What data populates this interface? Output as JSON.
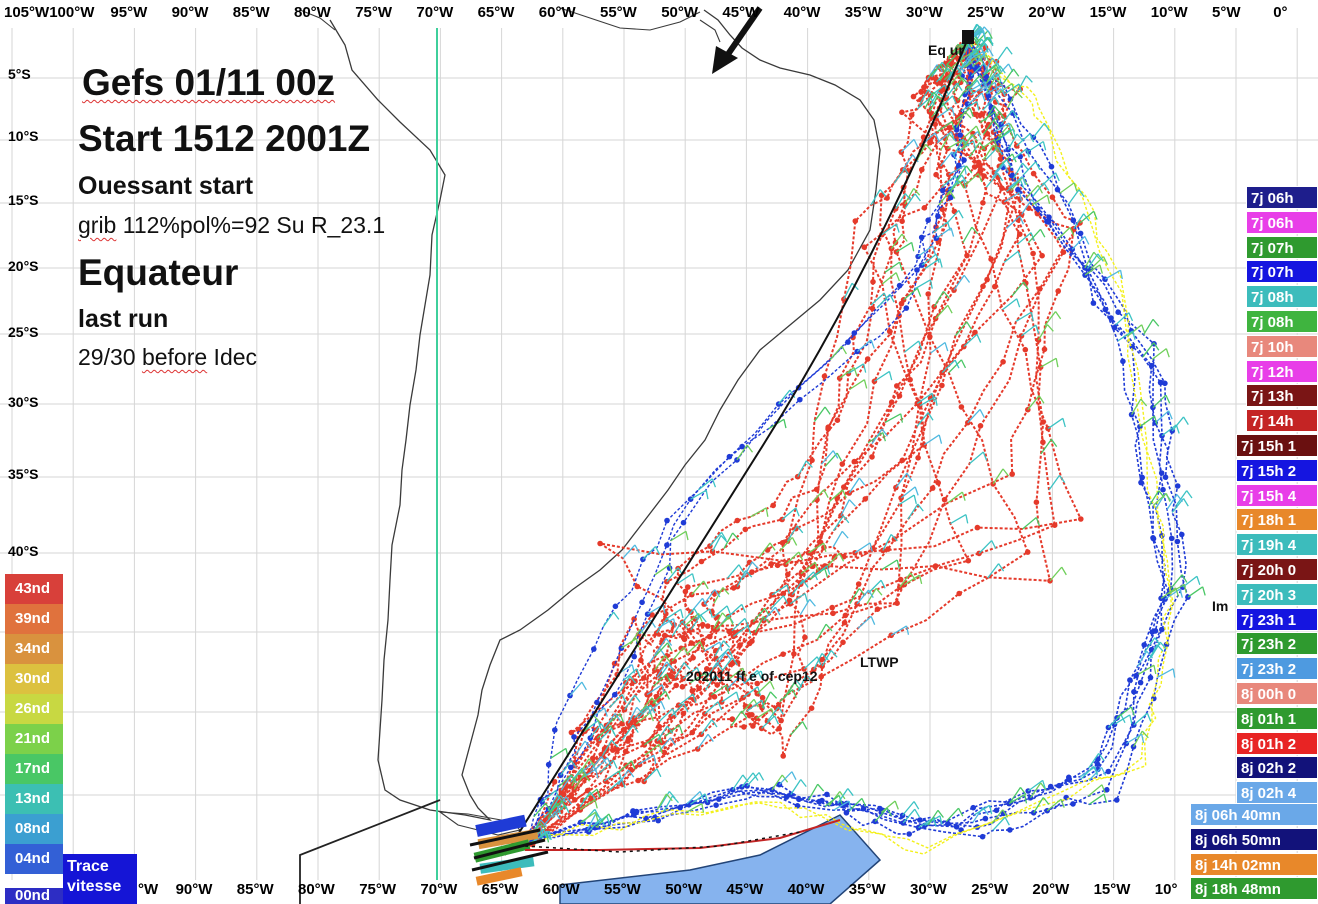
{
  "map": {
    "lon_labels_top": [
      "105°W",
      "100°W",
      "95°W",
      "90°W",
      "85°W",
      "80°W",
      "75°W",
      "70°W",
      "65°W",
      "60°W",
      "55°W",
      "50°W",
      "45°W",
      "40°W",
      "35°W",
      "30°W",
      "25°W",
      "20°W",
      "15°W",
      "10°W",
      "5°W",
      "0°"
    ],
    "lon_labels_bottom": [
      "°W",
      "90°W",
      "85°W",
      "80°W",
      "75°W",
      "70°W",
      "65°W",
      "60°W",
      "55°W",
      "50°W",
      "45°W",
      "40°W",
      "35°W",
      "30°W",
      "25°W",
      "20°W",
      "15°W",
      "10°"
    ],
    "lat_labels": [
      "5°S",
      "10°S",
      "15°S",
      "20°S",
      "25°S",
      "30°S",
      "35°S",
      "40°S"
    ],
    "colors": {
      "route_main": "#e53a2b",
      "route_alt": "#1f3bd6",
      "wind_barbs": "#3cc3c4",
      "route_yellow": "#f3f01c",
      "meridian": "#3ecf9b",
      "coast": "#333333"
    }
  },
  "info": {
    "gefs": "Gefs 01/11 00z",
    "start": "Start 1512 2001Z",
    "ouessant": "Ouessant start",
    "grib_word": "grib",
    "grib_rest": " 112%pol%=92 Su R_23.1",
    "equateur": "Equateur",
    "last_run": "last run",
    "before_prefix": "29/30 ",
    "before_word": "before",
    "before_suffix": " Idec"
  },
  "map_labels": {
    "equateur_partial": "Eq       ur",
    "model": "202011  ff    e of cep12",
    "ltwp": "LTWP",
    "im": "Im"
  },
  "speed_scale": {
    "items": [
      {
        "label": "43nd",
        "color": "#d8403a"
      },
      {
        "label": "39nd",
        "color": "#e0723d"
      },
      {
        "label": "34nd",
        "color": "#d9923e"
      },
      {
        "label": "30nd",
        "color": "#dcc13f"
      },
      {
        "label": "26nd",
        "color": "#c8d842"
      },
      {
        "label": "21nd",
        "color": "#7cd14a"
      },
      {
        "label": "17nd",
        "color": "#49c765"
      },
      {
        "label": "13nd",
        "color": "#3cbfb3"
      },
      {
        "label": "08nd",
        "color": "#3b9fd1"
      },
      {
        "label": "04nd",
        "color": "#3360d6"
      }
    ],
    "legend_line1": "Trace",
    "legend_line2": "vitesse",
    "bottom_cut": "00nd"
  },
  "time_legend": [
    {
      "label": "7j 06h",
      "color": "#1e1e8c"
    },
    {
      "label": "7j 06h",
      "color": "#e83ee8"
    },
    {
      "label": "7j 07h",
      "color": "#2f9a2f"
    },
    {
      "label": "7j 07h",
      "color": "#1515e0"
    },
    {
      "label": "7j 08h",
      "color": "#3cbcbc"
    },
    {
      "label": "7j 08h",
      "color": "#3fb43f"
    },
    {
      "label": "7j 10h",
      "color": "#e8887c"
    },
    {
      "label": "7j 12h",
      "color": "#e83ee8"
    },
    {
      "label": "7j 13h",
      "color": "#7a1515"
    },
    {
      "label": "7j 14h",
      "color": "#c42424"
    },
    {
      "label": "7j 15h 1",
      "color": "#6a1010"
    },
    {
      "label": "7j 15h 2",
      "color": "#1515e0"
    },
    {
      "label": "7j 15h 4",
      "color": "#e83ee8"
    },
    {
      "label": "7j 18h 1",
      "color": "#e8882a"
    },
    {
      "label": "7j 19h 4",
      "color": "#3cbcbc"
    },
    {
      "label": "7j 20h 0",
      "color": "#7a1515"
    },
    {
      "label": "7j 20h 3",
      "color": "#3cbcbc"
    },
    {
      "label": "7j 23h 1",
      "color": "#1515e0"
    },
    {
      "label": "7j 23h 2",
      "color": "#2f9a2f"
    },
    {
      "label": "7j 23h 2",
      "color": "#4e9ae0"
    },
    {
      "label": "8j 00h 0",
      "color": "#e8887c"
    },
    {
      "label": "8j 01h 1",
      "color": "#2f9a2f"
    },
    {
      "label": "8j 01h 2",
      "color": "#e82424"
    },
    {
      "label": "8j 02h 2",
      "color": "#12127a"
    },
    {
      "label": "8j 02h 4",
      "color": "#6aa8e8"
    },
    {
      "label": "8j 06h 40mn",
      "color": "#6aa8e8"
    },
    {
      "label": "8j 06h 50mn",
      "color": "#12127a"
    },
    {
      "label": "8j 14h 02mn",
      "color": "#e8882a"
    },
    {
      "label": "8j 18h 48mn",
      "color": "#2f9a2f"
    }
  ]
}
